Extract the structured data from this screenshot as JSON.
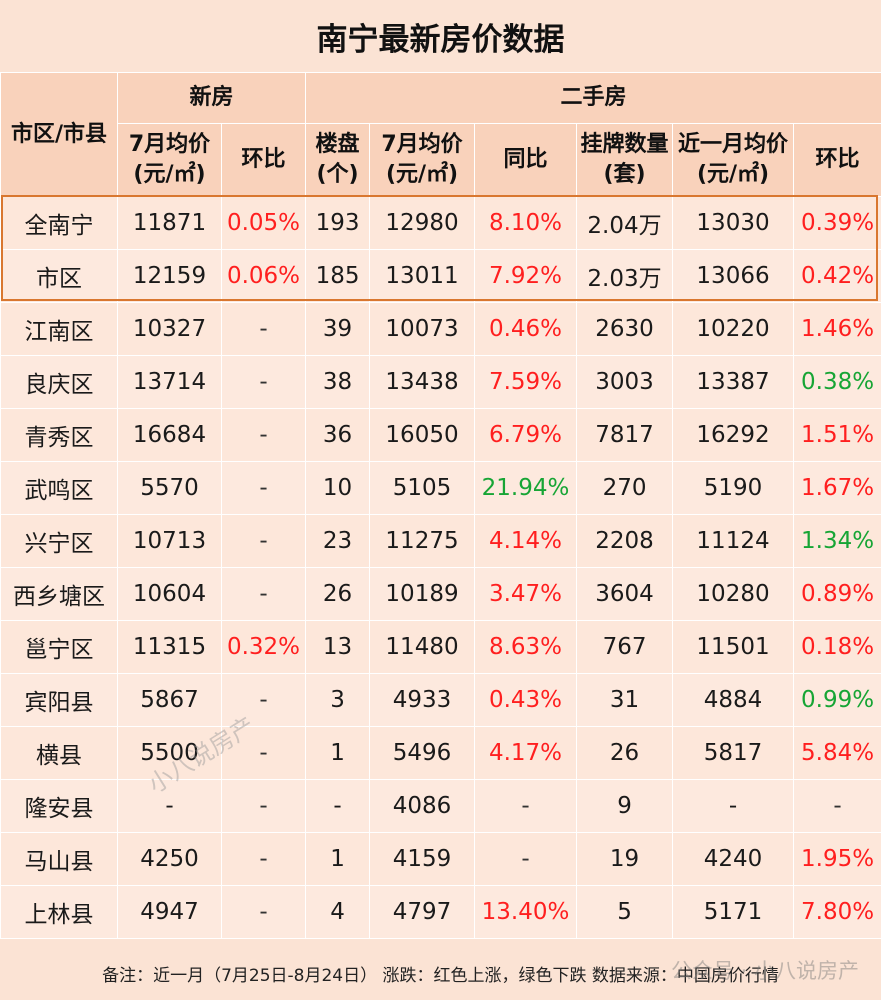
{
  "title": "南宁最新房价数据",
  "header": {
    "district": "市区/市县",
    "new_group": "新房",
    "second_group": "二手房",
    "new_price": "7月均价(元/㎡)",
    "new_mom": "环比",
    "new_projects": "楼盘(个)",
    "sec_price": "7月均价(元/㎡)",
    "sec_yoy": "同比",
    "sec_listings": "挂牌数量(套)",
    "sec_recent": "近一月均价(元/㎡)",
    "sec_mom": "环比"
  },
  "rows": [
    {
      "name": "全南宁",
      "np": "11871",
      "nm": "0.05%",
      "nmc": "red",
      "pj": "193",
      "sp": "12980",
      "yoy": "8.10%",
      "yoyc": "red",
      "ls": "2.04万",
      "rp": "13030",
      "sm": "0.39%",
      "smc": "red"
    },
    {
      "name": "市区",
      "np": "12159",
      "nm": "0.06%",
      "nmc": "red",
      "pj": "185",
      "sp": "13011",
      "yoy": "7.92%",
      "yoyc": "red",
      "ls": "2.03万",
      "rp": "13066",
      "sm": "0.42%",
      "smc": "red"
    },
    {
      "name": "江南区",
      "np": "10327",
      "nm": "-",
      "nmc": "dash",
      "pj": "39",
      "sp": "10073",
      "yoy": "0.46%",
      "yoyc": "red",
      "ls": "2630",
      "rp": "10220",
      "sm": "1.46%",
      "smc": "red"
    },
    {
      "name": "良庆区",
      "np": "13714",
      "nm": "-",
      "nmc": "dash",
      "pj": "38",
      "sp": "13438",
      "yoy": "7.59%",
      "yoyc": "red",
      "ls": "3003",
      "rp": "13387",
      "sm": "0.38%",
      "smc": "green"
    },
    {
      "name": "青秀区",
      "np": "16684",
      "nm": "-",
      "nmc": "dash",
      "pj": "36",
      "sp": "16050",
      "yoy": "6.79%",
      "yoyc": "red",
      "ls": "7817",
      "rp": "16292",
      "sm": "1.51%",
      "smc": "red"
    },
    {
      "name": "武鸣区",
      "np": "5570",
      "nm": "-",
      "nmc": "dash",
      "pj": "10",
      "sp": "5105",
      "yoy": "21.94%",
      "yoyc": "green",
      "ls": "270",
      "rp": "5190",
      "sm": "1.67%",
      "smc": "red"
    },
    {
      "name": "兴宁区",
      "np": "10713",
      "nm": "-",
      "nmc": "dash",
      "pj": "23",
      "sp": "11275",
      "yoy": "4.14%",
      "yoyc": "red",
      "ls": "2208",
      "rp": "11124",
      "sm": "1.34%",
      "smc": "green"
    },
    {
      "name": "西乡塘区",
      "np": "10604",
      "nm": "-",
      "nmc": "dash",
      "pj": "26",
      "sp": "10189",
      "yoy": "3.47%",
      "yoyc": "red",
      "ls": "3604",
      "rp": "10280",
      "sm": "0.89%",
      "smc": "red"
    },
    {
      "name": "邕宁区",
      "np": "11315",
      "nm": "0.32%",
      "nmc": "red",
      "pj": "13",
      "sp": "11480",
      "yoy": "8.63%",
      "yoyc": "red",
      "ls": "767",
      "rp": "11501",
      "sm": "0.18%",
      "smc": "red"
    },
    {
      "name": "宾阳县",
      "np": "5867",
      "nm": "-",
      "nmc": "dash",
      "pj": "3",
      "sp": "4933",
      "yoy": "0.43%",
      "yoyc": "red",
      "ls": "31",
      "rp": "4884",
      "sm": "0.99%",
      "smc": "green"
    },
    {
      "name": "横县",
      "np": "5500",
      "nm": "-",
      "nmc": "dash",
      "pj": "1",
      "sp": "5496",
      "yoy": "4.17%",
      "yoyc": "red",
      "ls": "26",
      "rp": "5817",
      "sm": "5.84%",
      "smc": "red"
    },
    {
      "name": "隆安县",
      "np": "-",
      "nm": "-",
      "nmc": "dash",
      "pj": "-",
      "sp": "4086",
      "yoy": "-",
      "yoyc": "dash",
      "ls": "9",
      "rp": "-",
      "sm": "-",
      "smc": "dash"
    },
    {
      "name": "马山县",
      "np": "4250",
      "nm": "-",
      "nmc": "dash",
      "pj": "1",
      "sp": "4159",
      "yoy": "-",
      "yoyc": "dash",
      "ls": "19",
      "rp": "4240",
      "sm": "1.95%",
      "smc": "red"
    },
    {
      "name": "上林县",
      "np": "4947",
      "nm": "-",
      "nmc": "dash",
      "pj": "4",
      "sp": "4797",
      "yoy": "13.40%",
      "yoyc": "red",
      "ls": "5",
      "rp": "5171",
      "sm": "7.80%",
      "smc": "red"
    }
  ],
  "footer": "备注：近一月（7月25日-8月24日） 涨跌：红色上涨，绿色下跌 数据来源：中国房价行情",
  "watermark": "小八说房产",
  "watermark2": "公众号 · 小八说房产"
}
